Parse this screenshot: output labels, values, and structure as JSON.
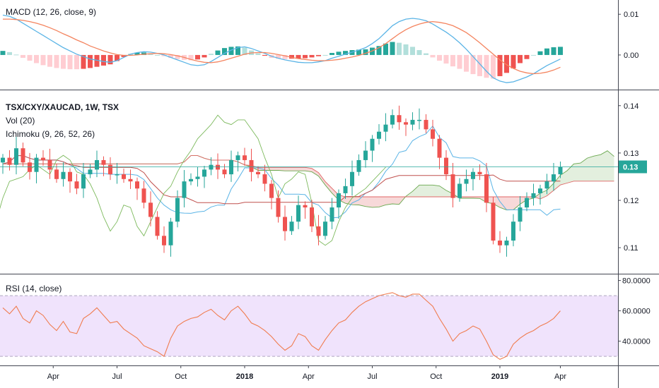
{
  "colors": {
    "up": "#26a69a",
    "down": "#ef5350",
    "macd_line": "#5ab4e6",
    "signal_line": "#f4845f",
    "hist_up_strong": "#26a69a",
    "hist_up_weak": "#b2dfdb",
    "hist_down_strong": "#ef5350",
    "hist_down_weak": "#ffcdd2",
    "tenkan": "#5ab4e6",
    "kijun": "#c0504d",
    "chikou": "#7cb95c",
    "span_a": "#6aa84f",
    "span_b": "#e06666",
    "rsi_line": "#f07c4f",
    "rsi_band": "#e9d7fb",
    "price_line": "#26a69a"
  },
  "chart_data": [
    {
      "panel": "MACD",
      "type": "line",
      "title": "MACD (12, 26, close, 9)",
      "yticks": [
        0.01,
        0.0
      ],
      "ylim": [
        -0.0085,
        0.0135
      ],
      "series": [
        {
          "name": "",
          "kind": "macd",
          "values": [
            0.0098,
            0.0095,
            0.0088,
            0.0078,
            0.0068,
            0.0058,
            0.0048,
            0.0038,
            0.0028,
            0.0018,
            0.001,
            0.0002,
            -0.0004,
            -0.001,
            -0.0013,
            -0.0016,
            -0.0018,
            -0.0014,
            -0.0006,
            0.0002,
            0.0006,
            0.0008,
            0.0007,
            0.0004,
            0.0,
            -0.0006,
            -0.0012,
            -0.0018,
            -0.0024,
            -0.0026,
            -0.0024,
            -0.0016,
            -0.0006,
            0.0004,
            0.0012,
            0.0018,
            0.002,
            0.0016,
            0.001,
            0.0004,
            -0.0003,
            -0.0008,
            -0.0012,
            -0.0015,
            -0.0018,
            -0.0019,
            -0.0019,
            -0.0017,
            -0.0014,
            -0.0008,
            -0.0003,
            0.0002,
            0.0007,
            0.0012,
            0.0018,
            0.0028,
            0.004,
            0.0056,
            0.0072,
            0.0082,
            0.0088,
            0.009,
            0.0088,
            0.0084,
            0.0076,
            0.0066,
            0.0056,
            0.0044,
            0.003,
            0.0014,
            -0.0004,
            -0.0022,
            -0.004,
            -0.0056,
            -0.0064,
            -0.0068,
            -0.0066,
            -0.006,
            -0.0054,
            -0.0046,
            -0.0036,
            -0.0026,
            -0.0018,
            -0.001
          ]
        },
        {
          "name": "",
          "kind": "signal",
          "values": [
            0.0088,
            0.0088,
            0.0087,
            0.0085,
            0.0082,
            0.0078,
            0.0073,
            0.0067,
            0.006,
            0.0052,
            0.0045,
            0.0037,
            0.003,
            0.0022,
            0.0016,
            0.001,
            0.0005,
            0.0001,
            -0.0001,
            -0.0001,
            0.0,
            0.0002,
            0.0003,
            0.0004,
            0.0003,
            0.0001,
            -0.0002,
            -0.0006,
            -0.0011,
            -0.0015,
            -0.0018,
            -0.0019,
            -0.0017,
            -0.0013,
            -0.0008,
            -0.0003,
            0.0002,
            0.0005,
            0.0006,
            0.0006,
            0.0004,
            0.0001,
            -0.0002,
            -0.0006,
            -0.0009,
            -0.0011,
            -0.0013,
            -0.0014,
            -0.0014,
            -0.0013,
            -0.0011,
            -0.0008,
            -0.0005,
            -0.0001,
            0.0004,
            0.001,
            0.0018,
            0.0028,
            0.004,
            0.0052,
            0.0062,
            0.007,
            0.0076,
            0.008,
            0.0082,
            0.008,
            0.0077,
            0.0072,
            0.0064,
            0.0055,
            0.0043,
            0.003,
            0.0016,
            0.0002,
            -0.0012,
            -0.0024,
            -0.0033,
            -0.004,
            -0.0044,
            -0.0046,
            -0.0045,
            -0.0042,
            -0.0037,
            -0.003
          ]
        }
      ]
    },
    {
      "panel": "Price",
      "type": "candlestick",
      "title": "TSX/CXY/XAUCAD, 1W, TSX",
      "legend": [
        "Vol (20)",
        "Ichimoku (9, 26, 52, 26)"
      ],
      "last_value": "0.13",
      "yticks": [
        0.14,
        0.13,
        0.12,
        0.11
      ],
      "ylim": [
        0.1045,
        0.1425
      ],
      "x": [
        "Apr",
        "Jul",
        "Oct",
        "2018",
        "Apr",
        "Jul",
        "Oct",
        "2019",
        "Apr"
      ],
      "closes": [
        0.129,
        0.1275,
        0.131,
        0.128,
        0.126,
        0.129,
        0.1285,
        0.1265,
        0.1245,
        0.126,
        0.124,
        0.1225,
        0.1255,
        0.1265,
        0.1285,
        0.1275,
        0.1255,
        0.1255,
        0.1245,
        0.124,
        0.1225,
        0.1195,
        0.1165,
        0.1125,
        0.1105,
        0.1155,
        0.1205,
        0.124,
        0.1245,
        0.125,
        0.1265,
        0.1275,
        0.1265,
        0.1255,
        0.1285,
        0.1295,
        0.1285,
        0.126,
        0.1255,
        0.1235,
        0.1205,
        0.1165,
        0.1135,
        0.1155,
        0.119,
        0.1185,
        0.1145,
        0.1125,
        0.1155,
        0.1185,
        0.1215,
        0.123,
        0.126,
        0.1285,
        0.1305,
        0.133,
        0.1345,
        0.136,
        0.138,
        0.1365,
        0.136,
        0.137,
        0.137,
        0.135,
        0.133,
        0.129,
        0.1255,
        0.1205,
        0.1235,
        0.1245,
        0.126,
        0.1255,
        0.1195,
        0.1115,
        0.1105,
        0.1115,
        0.1155,
        0.1185,
        0.1205,
        0.1215,
        0.1225,
        0.124,
        0.1255,
        0.127
      ],
      "markers": {
        "tenkan": true,
        "kijun": true,
        "chikou": true,
        "cloud": true
      }
    },
    {
      "panel": "RSI",
      "type": "line",
      "title": "RSI (14, close)",
      "yticks": [
        "80.0000",
        "60.0000",
        "40.0000"
      ],
      "yvalues": [
        80,
        60,
        40
      ],
      "band": [
        30,
        70
      ],
      "ylim": [
        24,
        84
      ],
      "series": [
        {
          "name": "",
          "values": [
            62,
            58,
            63,
            55,
            52,
            60,
            57,
            51,
            47,
            53,
            46,
            45,
            55,
            58,
            62,
            57,
            52,
            53,
            48,
            45,
            42,
            37,
            35,
            33,
            30,
            42,
            50,
            53,
            55,
            56,
            59,
            61,
            57,
            54,
            60,
            63,
            58,
            52,
            50,
            47,
            43,
            38,
            34,
            37,
            45,
            43,
            37,
            34,
            41,
            47,
            52,
            54,
            59,
            63,
            66,
            68,
            70,
            71,
            72,
            70,
            69,
            71,
            71,
            67,
            63,
            55,
            48,
            40,
            45,
            47,
            50,
            48,
            40,
            31,
            28,
            30,
            38,
            42,
            45,
            47,
            50,
            52,
            55,
            60
          ]
        }
      ]
    }
  ],
  "time_axis": [
    "Apr",
    "Jul",
    "Oct",
    "2018",
    "Apr",
    "Jul",
    "Oct",
    "2019",
    "Apr"
  ]
}
